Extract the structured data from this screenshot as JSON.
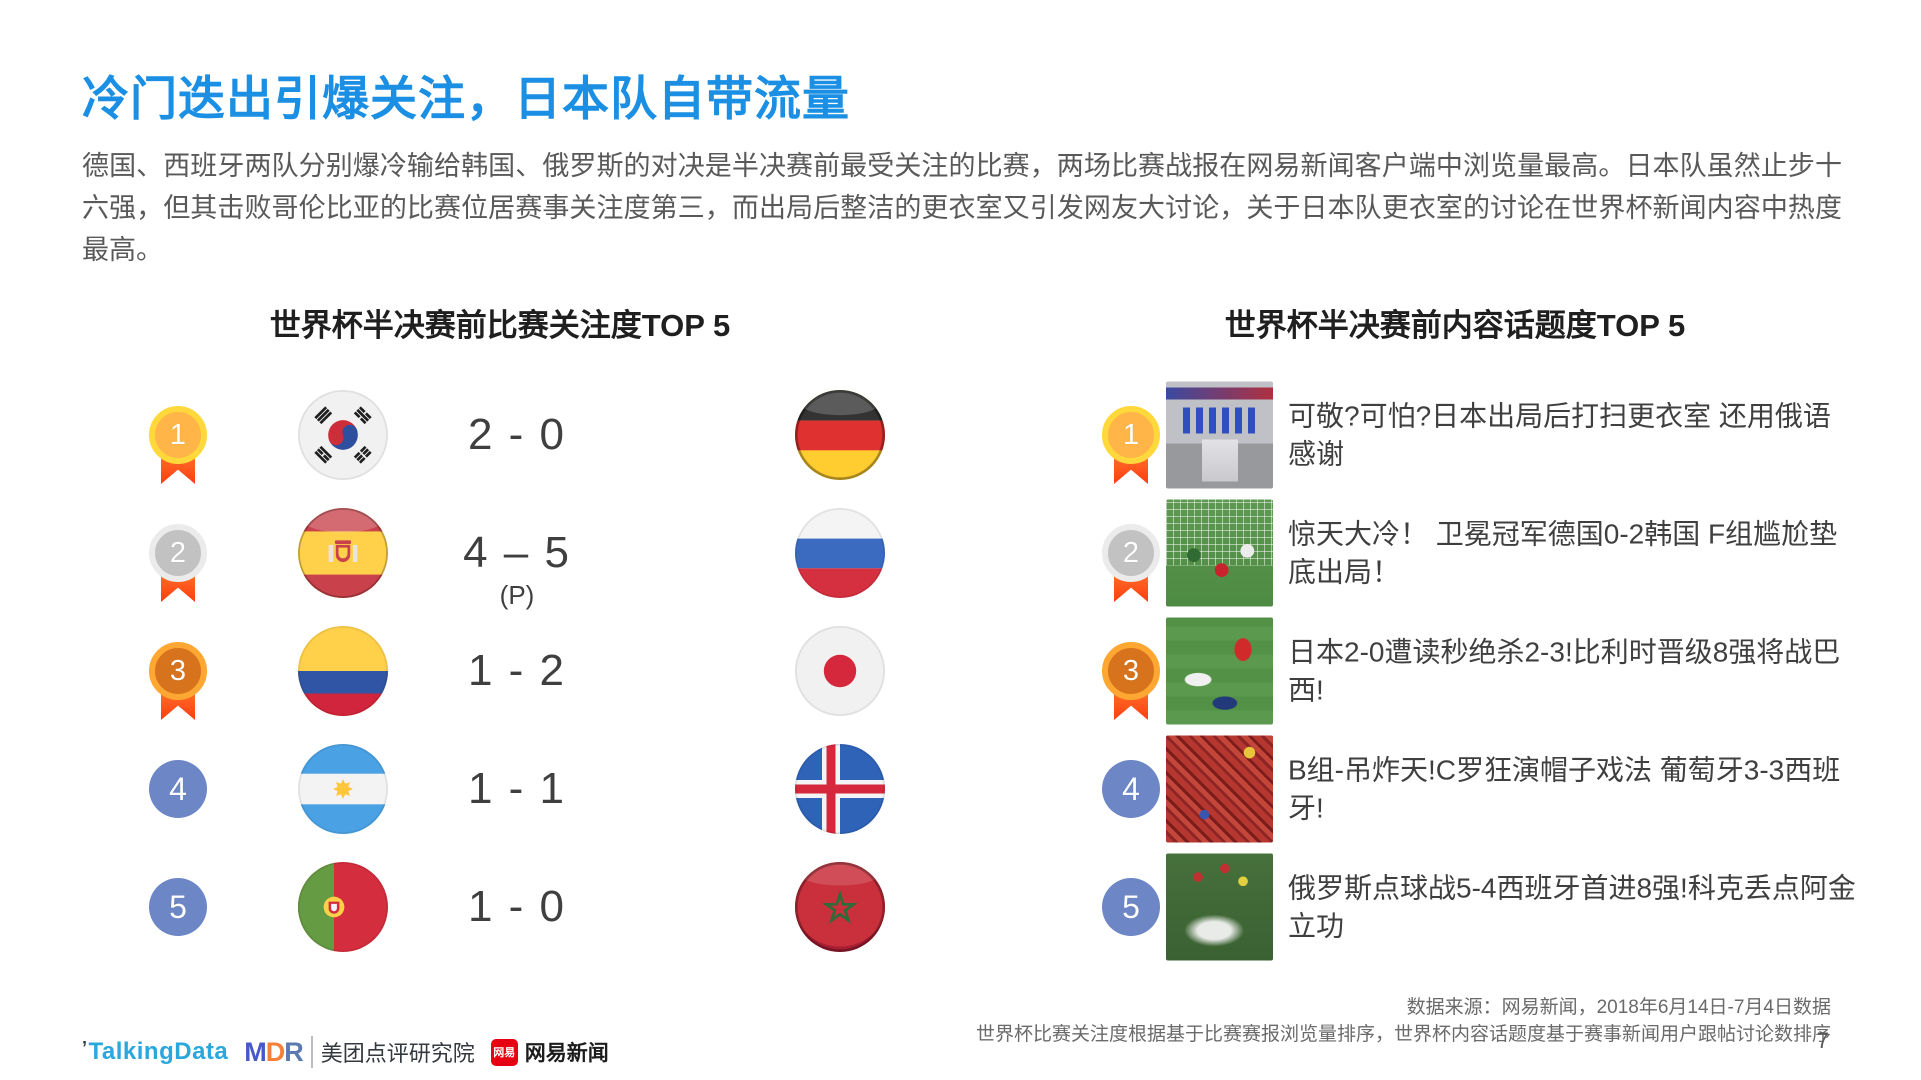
{
  "page": {
    "title": "冷门迭出引爆关注，日本队自带流量",
    "paragraph": "德国、西班牙两队分别爆冷输给韩国、俄罗斯的对决是半决赛前最受关注的比赛，两场比赛战报在网易新闻客户端中浏览量最高。日本队虽然止步十六强，但其击败哥伦比亚的比赛位居赛事关注度第三，而出局后整洁的更衣室又引发网友大讨论，关于日本队更衣室的讨论在世界杯新闻内容中热度最高。",
    "page_number": "7"
  },
  "colors": {
    "title_blue": "#1a8fe3",
    "medal_gold_ring": "#ffd83b",
    "medal_gold_fill": "#ffb547",
    "medal_silver_ring": "#ebebeb",
    "medal_silver_fill": "#c2c2c2",
    "medal_bronze_ring": "#ffa733",
    "medal_bronze_fill": "#d8731d",
    "medal_plain_fill": "#6c86c6",
    "ribbon_red": "#ff3d12"
  },
  "matches_section": {
    "title": "世界杯半决赛前比赛关注度TOP 5",
    "rows": [
      {
        "rank": "1",
        "medal": "gold",
        "home_flag": "south-korea",
        "score": "2 - 0",
        "score_note": "",
        "away_flag": "germany"
      },
      {
        "rank": "2",
        "medal": "silver",
        "home_flag": "spain",
        "score": "4 – 5",
        "score_note": "(P)",
        "away_flag": "russia"
      },
      {
        "rank": "3",
        "medal": "bronze",
        "home_flag": "colombia",
        "score": "1 - 2",
        "score_note": "",
        "away_flag": "japan"
      },
      {
        "rank": "4",
        "medal": "plain",
        "home_flag": "argentina",
        "score": "1 - 1",
        "score_note": "",
        "away_flag": "iceland"
      },
      {
        "rank": "5",
        "medal": "plain",
        "home_flag": "portugal",
        "score": "1 - 0",
        "score_note": "",
        "away_flag": "morocco"
      }
    ]
  },
  "topics_section": {
    "title": "世界杯半决赛前内容话题度TOP 5",
    "rows": [
      {
        "rank": "1",
        "medal": "gold",
        "thumb": "locker-room",
        "headline": "可敬?可怕?日本出局后打扫更衣室 还用俄语感谢"
      },
      {
        "rank": "2",
        "medal": "silver",
        "thumb": "goal-upset",
        "headline": "惊天大冷！ 卫冕冠军德国0-2韩国 F组尴尬垫底出局！"
      },
      {
        "rank": "3",
        "medal": "bronze",
        "thumb": "pitch-despair",
        "headline": "日本2-0遭读秒绝杀2-3!比利时晋级8强将战巴西!"
      },
      {
        "rank": "4",
        "medal": "plain",
        "thumb": "red-crowd",
        "headline": "B组-吊炸天!C罗狂演帽子戏法 葡萄牙3-3西班牙!"
      },
      {
        "rank": "5",
        "medal": "plain",
        "thumb": "celebration",
        "headline": "俄罗斯点球战5-4西班牙首进8强!科克丢点阿金立功"
      }
    ]
  },
  "footer": {
    "source_line1": "数据来源：网易新闻，2018年6月14日-7月4日数据",
    "source_line2": "世界杯比赛关注度根据基于比赛赛报浏览量排序，世界杯内容话题度基于赛事新闻用户跟帖讨论数排序",
    "logos": {
      "talkingdata": "TalkingData",
      "mdr": "MDR",
      "meituan": "美团点评研究院",
      "netease_badge": "网易",
      "netease": "网易新闻"
    }
  }
}
